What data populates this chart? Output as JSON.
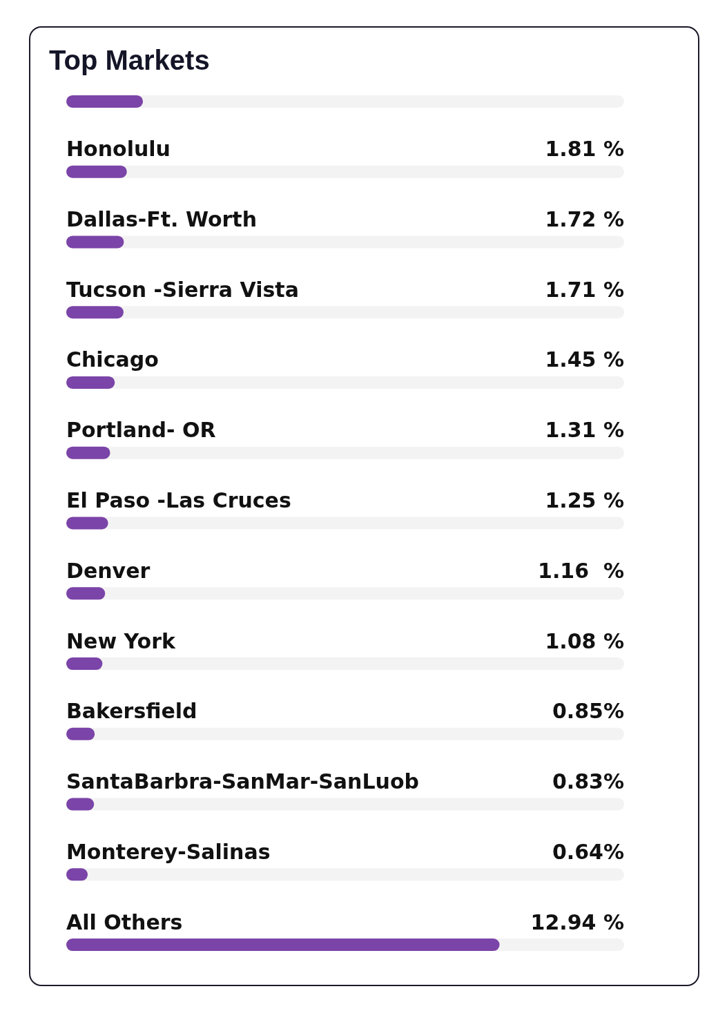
{
  "chart_data": {
    "type": "bar",
    "orientation": "horizontal",
    "title": "Top Markets",
    "categories": [
      null,
      "Honolulu",
      "Dallas-Ft. Worth",
      "Tucson -Sierra Vista",
      "Chicago",
      "Portland- OR",
      "El Paso -Las Cruces",
      "Denver",
      "New York",
      "Bakersfield",
      "SantaBarbra-SanMar-SanLuob",
      "Monterey-Salinas",
      "All Others"
    ],
    "values": [
      2.29,
      1.81,
      1.72,
      1.71,
      1.45,
      1.31,
      1.25,
      1.16,
      1.08,
      0.85,
      0.83,
      0.64,
      12.94
    ],
    "value_labels": [
      null,
      "1.81 %",
      "1.72 %",
      "1.71 %",
      "1.45 %",
      "1.31 %",
      "1.25 %",
      "1.16  %",
      "1.08 %",
      "0.85%",
      "0.83%",
      "0.64%",
      "12.94 %"
    ],
    "color": "#7b44a8",
    "xlim": [
      0,
      16.66
    ],
    "tick_labels": "y"
  }
}
